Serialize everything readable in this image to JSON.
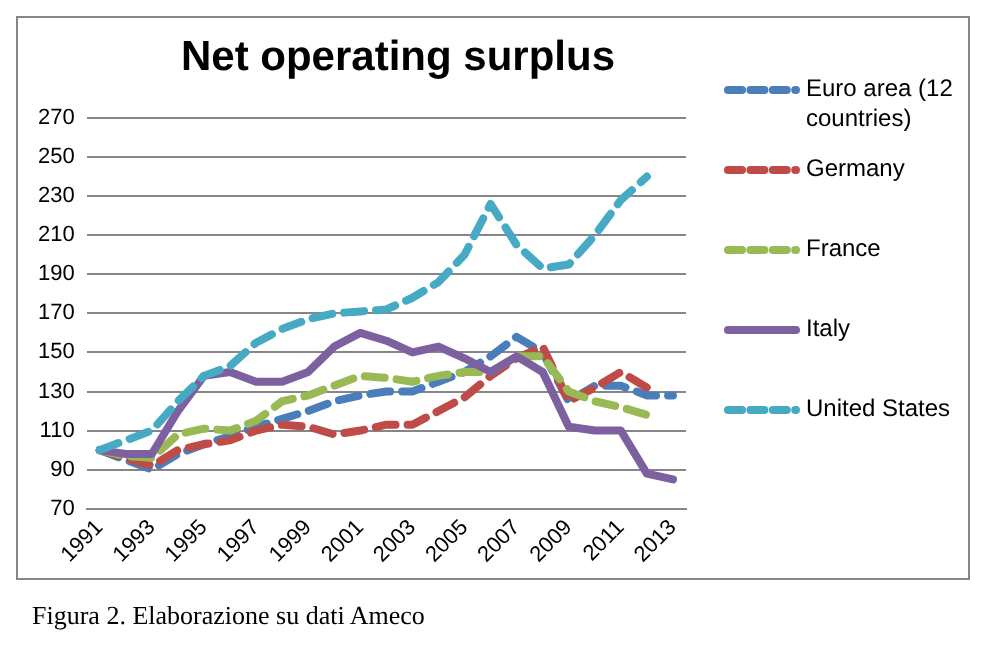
{
  "chart_data": {
    "type": "line",
    "title": "Net operating surplus",
    "categories": [
      "1991",
      null,
      "1993",
      null,
      "1995",
      null,
      "1997",
      null,
      "1999",
      null,
      "2001",
      null,
      "2003",
      null,
      "2005",
      null,
      "2007",
      null,
      "2009",
      null,
      "2011",
      null,
      "2013"
    ],
    "series": [
      {
        "name": "Euro area (12 countries)",
        "color": "#4a7ebb",
        "line_style": "dashed",
        "values": [
          100,
          95,
          90,
          98,
          103,
          107,
          112,
          116,
          120,
          125,
          128,
          130,
          130,
          135,
          140,
          148,
          158,
          150,
          125,
          133,
          133,
          128,
          128
        ]
      },
      {
        "name": "Germany",
        "color": "#be4b48",
        "line_style": "dashed",
        "values": [
          100,
          96,
          92,
          100,
          103,
          105,
          110,
          113,
          112,
          108,
          110,
          113,
          113,
          120,
          127,
          138,
          147,
          153,
          125,
          132,
          140,
          132,
          null
        ]
      },
      {
        "name": "France",
        "color": "#98b954",
        "line_style": "dashed",
        "values": [
          100,
          97,
          96,
          108,
          111,
          110,
          115,
          125,
          128,
          133,
          138,
          137,
          135,
          138,
          140,
          140,
          148,
          148,
          130,
          125,
          122,
          118,
          null
        ]
      },
      {
        "name": "Italy",
        "color": "#7d60a0",
        "line_style": "solid",
        "values": [
          100,
          98,
          98,
          120,
          138,
          140,
          135,
          135,
          140,
          153,
          160,
          156,
          150,
          153,
          147,
          140,
          148,
          140,
          112,
          110,
          110,
          88,
          85
        ]
      },
      {
        "name": "United States",
        "color": "#46aac5",
        "line_style": "dashed",
        "values": [
          100,
          105,
          110,
          125,
          138,
          143,
          155,
          162,
          167,
          170,
          171,
          172,
          178,
          186,
          200,
          226,
          205,
          193,
          195,
          210,
          228,
          240,
          null
        ]
      }
    ],
    "ylim": [
      70,
      270
    ],
    "yticks": [
      70,
      90,
      110,
      130,
      150,
      170,
      190,
      210,
      230,
      250,
      270
    ],
    "grid": "y",
    "legend": "right",
    "marker": "none",
    "annotations": [
      "Figura 2. Elaborazione su dati Ameco"
    ]
  }
}
